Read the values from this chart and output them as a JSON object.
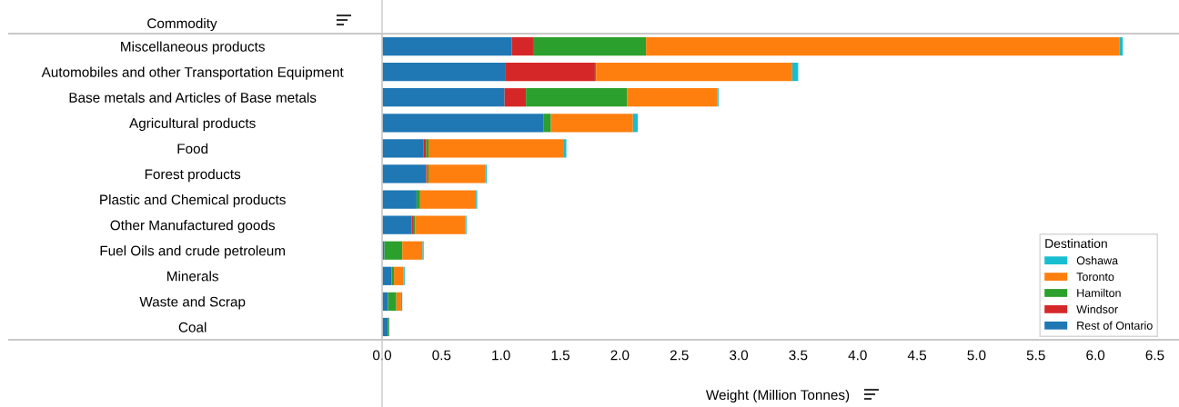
{
  "chart_data": {
    "type": "bar",
    "orientation": "horizontal",
    "stacked": true,
    "ylabel": "Commodity",
    "xlabel": "Weight (Million Tonnes)",
    "legend_title": "Destination",
    "legend": "bottom right",
    "grid": false,
    "categories": [
      "Miscellaneous products",
      "Automobiles and other Transportation Equipment",
      "Base metals and Articles of Base metals",
      "Agricultural products",
      "Food",
      "Forest products",
      "Plastic and Chemical products",
      "Other Manufactured goods",
      "Fuel Oils and crude petroleum",
      "Minerals",
      "Waste and Scrap",
      "Coal"
    ],
    "xlim": [
      0,
      6.55
    ],
    "xticks": [
      {
        "value": 0,
        "label": "0.0"
      },
      {
        "value": 0.5,
        "label": "0.5"
      },
      {
        "value": 1,
        "label": "1.0"
      },
      {
        "value": 1.5,
        "label": "1.5"
      },
      {
        "value": 2,
        "label": "2.0"
      },
      {
        "value": 2.5,
        "label": "2.5"
      },
      {
        "value": 3,
        "label": "3.0"
      },
      {
        "value": 3.5,
        "label": "3.5"
      },
      {
        "value": 4,
        "label": "4.0"
      },
      {
        "value": 4.5,
        "label": "4.5"
      },
      {
        "value": 5,
        "label": "5.0"
      },
      {
        "value": 5.5,
        "label": "5.5"
      },
      {
        "value": 6,
        "label": "6.0"
      },
      {
        "value": 6.5,
        "label": "6.5"
      }
    ],
    "series": [
      {
        "name": "Rest of Ontario",
        "color": "#1f77b4",
        "values": [
          1.09,
          1.04,
          1.03,
          1.36,
          0.35,
          0.37,
          0.29,
          0.25,
          0.02,
          0.08,
          0.05,
          0.05
        ]
      },
      {
        "name": "Windsor",
        "color": "#d62728",
        "values": [
          0.18,
          0.75,
          0.18,
          0,
          0.02,
          0.01,
          0,
          0.01,
          0,
          0,
          0,
          0
        ]
      },
      {
        "name": "Hamilton",
        "color": "#2ca02c",
        "values": [
          0.95,
          0.01,
          0.85,
          0.06,
          0.02,
          0.01,
          0.03,
          0.02,
          0.15,
          0.02,
          0.07,
          0.01
        ]
      },
      {
        "name": "Toronto",
        "color": "#ff7f0e",
        "values": [
          3.98,
          1.65,
          0.76,
          0.69,
          1.14,
          0.48,
          0.47,
          0.42,
          0.17,
          0.08,
          0.04,
          0
        ]
      },
      {
        "name": "Oshawa",
        "color": "#17becf",
        "values": [
          0.03,
          0.05,
          0.01,
          0.04,
          0.02,
          0.01,
          0.01,
          0.01,
          0.01,
          0.01,
          0.01,
          0
        ]
      }
    ]
  }
}
